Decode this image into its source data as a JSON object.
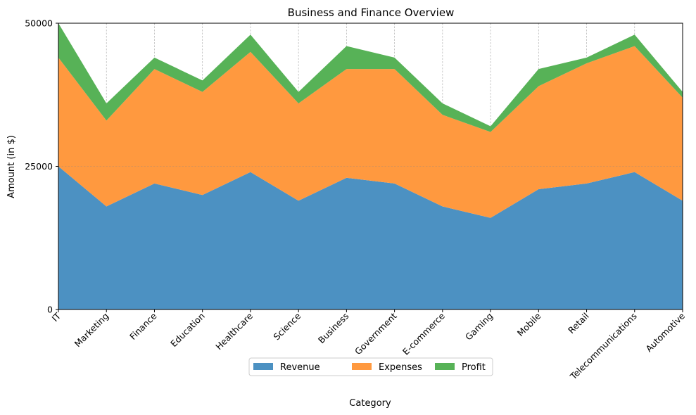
{
  "chart_data": {
    "type": "area",
    "stacked": true,
    "title": "Business and Finance Overview",
    "xlabel": "Category",
    "ylabel": "Amount (in $)",
    "ylim": [
      0,
      50000
    ],
    "yticks": [
      0,
      25000,
      50000
    ],
    "ytick_labels": [
      "0",
      "25000",
      "50000"
    ],
    "grid": "vertical dashed",
    "legend_position": "bottom-center",
    "categories": [
      "IT",
      "Marketing",
      "Finance",
      "Education",
      "Healthcare",
      "Science",
      "Business",
      "Government",
      "E-commerce",
      "Gaming",
      "Mobile",
      "Retail",
      "Telecommunications",
      "Automotive"
    ],
    "series": [
      {
        "name": "Revenue",
        "color": "#4c91c2",
        "values": [
          25000,
          18000,
          22000,
          20000,
          24000,
          19000,
          23000,
          22000,
          18000,
          16000,
          21000,
          22000,
          24000,
          19000
        ]
      },
      {
        "name": "Expenses",
        "color": "#ff993f",
        "values": [
          19000,
          15000,
          20000,
          18000,
          21000,
          17000,
          19000,
          20000,
          16000,
          15000,
          18000,
          21000,
          22000,
          18000
        ]
      },
      {
        "name": "Profit",
        "color": "#57b257",
        "values": [
          6000,
          3000,
          2000,
          2000,
          3000,
          2000,
          4000,
          2000,
          2000,
          1000,
          3000,
          1000,
          2000,
          1000
        ]
      }
    ]
  }
}
